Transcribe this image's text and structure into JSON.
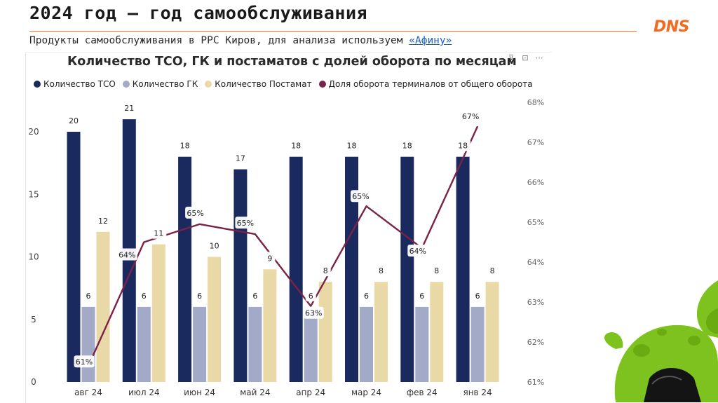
{
  "header": {
    "title": "2024 год – год самообслуживания",
    "subtitle_text": "Продукты самообслуживания в РРС Киров, для анализа используем ",
    "subtitle_link": "«Афину»",
    "logo": "DNS"
  },
  "toolbar": {
    "icons": [
      "filter-icon",
      "focus-icon",
      "more-icon"
    ],
    "filter": "⊽",
    "focus": "⊡",
    "more": "⋯"
  },
  "colors": {
    "accent": "#f26b21",
    "tso": "#1b2a5e",
    "gk": "#a3aac8",
    "postamat": "#e8d9a6",
    "share": "#7a2248"
  },
  "chart_data": {
    "type": "bar",
    "title": "Количество ТСО, ГК и постаматов с долей оборота по месяцам",
    "categories": [
      "авг 24",
      "июл 24",
      "июн 24",
      "май 24",
      "апр 24",
      "мар 24",
      "фев 24",
      "янв 24"
    ],
    "series": [
      {
        "name": "Количество ТСО",
        "values": [
          20,
          21,
          18,
          17,
          18,
          18,
          18,
          18
        ]
      },
      {
        "name": "Количество ГК",
        "values": [
          6,
          6,
          6,
          6,
          6,
          6,
          6,
          6
        ]
      },
      {
        "name": "Количество Постамат",
        "values": [
          12,
          11,
          10,
          9,
          8,
          8,
          8,
          8
        ]
      }
    ],
    "line_series": {
      "name": "Доля оборота терминалов от общего оборота",
      "values": [
        61.4,
        64.5,
        64.95,
        64.7,
        62.9,
        65.4,
        64.35,
        67.4
      ],
      "labels": [
        "61%",
        "64%",
        "65%",
        "65%",
        "63%",
        "65%",
        "64%",
        "67%"
      ]
    },
    "y_left": {
      "range": [
        0,
        22
      ],
      "ticks": [
        "0",
        "5",
        "10",
        "15",
        "20"
      ],
      "tick_values": [
        0,
        5,
        10,
        15,
        20
      ]
    },
    "y_right": {
      "range": [
        61,
        68
      ],
      "ticks": [
        "61%",
        "62%",
        "63%",
        "64%",
        "65%",
        "66%",
        "67%",
        "68%"
      ],
      "tick_values": [
        61,
        62,
        63,
        64,
        65,
        66,
        67,
        68
      ]
    },
    "legend_position": "top",
    "grid": false
  }
}
